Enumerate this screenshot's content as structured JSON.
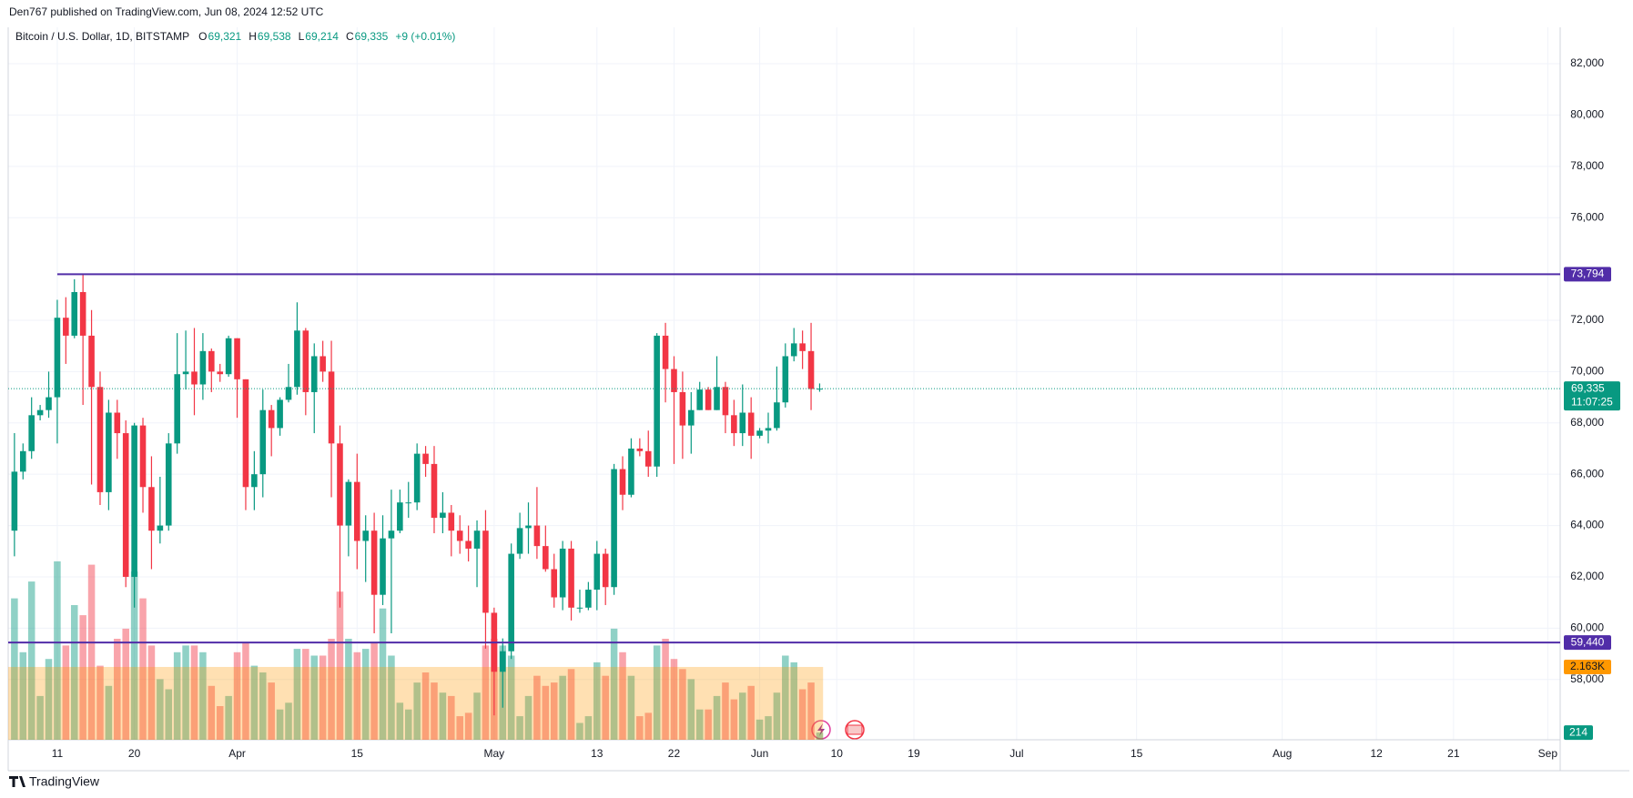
{
  "header": {
    "byline": "Den767 published on TradingView.com, Jun 08, 2024 12:52 UTC",
    "footer": "TradingView"
  },
  "chart_data": {
    "type": "candlestick",
    "title": "Bitcoin / U.S. Dollar, 1D, BITSTAMP",
    "legend": [
      {
        "label": "O",
        "value": 69321,
        "text": "69,321"
      },
      {
        "label": "H",
        "value": 69538,
        "text": "69,538"
      },
      {
        "label": "L",
        "value": 69214,
        "text": "69,214"
      },
      {
        "label": "C",
        "value": 69335,
        "text": "69,335"
      }
    ],
    "change": "+9 (+0.01%)",
    "up_color": "#089981",
    "down_color": "#f23645",
    "x": [
      0,
      1,
      2,
      3,
      4,
      5,
      6,
      7,
      8,
      9,
      10,
      11,
      12,
      13,
      14,
      15,
      16,
      17,
      18,
      19,
      20,
      21,
      22,
      23,
      24,
      25,
      26,
      27,
      28,
      29,
      30,
      31,
      32,
      33,
      34,
      35,
      36,
      37,
      38,
      39,
      40,
      41,
      42,
      43,
      44,
      45,
      46,
      47,
      48,
      49,
      50,
      51,
      52,
      53,
      54,
      55,
      56,
      57,
      58,
      59,
      60,
      61,
      62,
      63,
      64,
      65,
      66,
      67,
      68,
      69,
      70,
      71,
      72,
      73,
      74,
      75,
      76,
      77,
      78,
      79,
      80,
      81,
      82,
      83,
      84,
      85,
      86,
      87,
      88,
      89,
      90,
      91,
      92,
      93,
      94
    ],
    "open": [
      63800,
      66100,
      66900,
      68300,
      68500,
      69000,
      72100,
      71400,
      73100,
      71400,
      69400,
      65300,
      68400,
      67600,
      62000,
      67900,
      65500,
      63800,
      64000,
      67200,
      69900,
      70000,
      69500,
      70800,
      70000,
      69900,
      71300,
      69700,
      65500,
      66000,
      68500,
      67800,
      68900,
      69400,
      71600,
      69200,
      70600,
      70000,
      67200,
      64000,
      65700,
      63400,
      63800,
      61300,
      63500,
      63800,
      64900,
      64900,
      66800,
      66400,
      64300,
      64500,
      63800,
      63400,
      63100,
      63800,
      60600,
      58300,
      59100,
      62900,
      63900,
      64000,
      63200,
      62300,
      61200,
      63100,
      60800,
      60800,
      61500,
      62900,
      61600,
      66200,
      65200,
      67000,
      66900,
      66300,
      71400,
      70100,
      69200,
      67900,
      68500,
      69300,
      68500,
      69400,
      68300,
      67600,
      68400,
      67500,
      67700,
      67800,
      68800,
      70600,
      71100,
      70800,
      69321
    ],
    "high": [
      67600,
      67200,
      69000,
      68700,
      70000,
      72800,
      72900,
      73600,
      73794,
      72400,
      70000,
      68900,
      68900,
      68100,
      68000,
      68200,
      66700,
      65900,
      67600,
      71500,
      71600,
      71700,
      71500,
      70900,
      70300,
      71400,
      71300,
      69700,
      66900,
      69300,
      68700,
      69000,
      70300,
      72700,
      71700,
      71100,
      71200,
      71200,
      67900,
      65800,
      66800,
      64400,
      64500,
      64400,
      65400,
      65400,
      65700,
      67200,
      67100,
      67100,
      65300,
      64800,
      64400,
      64000,
      64200,
      64600,
      60800,
      59600,
      63300,
      64500,
      64900,
      65500,
      64000,
      62900,
      63400,
      63400,
      61500,
      61800,
      63400,
      63100,
      66400,
      66700,
      67400,
      67400,
      67700,
      71500,
      71900,
      70600,
      70000,
      69200,
      69600,
      69400,
      70600,
      69600,
      68900,
      69500,
      69000,
      67800,
      68400,
      70200,
      71100,
      71700,
      71600,
      71900,
      69538
    ],
    "low": [
      62800,
      65800,
      66600,
      68100,
      68200,
      67200,
      70300,
      71300,
      68700,
      65600,
      64800,
      64600,
      66600,
      61600,
      60800,
      64500,
      62300,
      63300,
      63800,
      66800,
      69300,
      68300,
      68900,
      69200,
      69600,
      69800,
      68200,
      64600,
      64600,
      65100,
      66700,
      67500,
      68800,
      69100,
      68300,
      67600,
      69600,
      65100,
      60800,
      62800,
      62300,
      61800,
      59800,
      60900,
      59800,
      63700,
      64300,
      64600,
      65900,
      63700,
      63700,
      62800,
      62900,
      62600,
      61600,
      59200,
      56600,
      56900,
      58800,
      62700,
      62900,
      62700,
      62200,
      60800,
      60700,
      60300,
      60600,
      60700,
      60700,
      60900,
      61300,
      64600,
      65100,
      66700,
      65900,
      65900,
      68800,
      66400,
      66600,
      66800,
      68500,
      68500,
      68500,
      67600,
      67100,
      67100,
      66600,
      67400,
      67200,
      67700,
      68600,
      70400,
      70100,
      68500,
      69214
    ],
    "close": [
      66100,
      66900,
      68300,
      68500,
      69000,
      72100,
      71400,
      73100,
      71400,
      69400,
      65300,
      68400,
      67600,
      62000,
      67900,
      65500,
      63800,
      64000,
      67200,
      69900,
      70000,
      69500,
      70800,
      70000,
      69900,
      71300,
      69700,
      65500,
      66000,
      68500,
      67800,
      68900,
      69400,
      71600,
      69200,
      70600,
      70000,
      67200,
      64000,
      65700,
      63400,
      63800,
      61300,
      63500,
      63800,
      64900,
      64900,
      66800,
      66400,
      64300,
      64500,
      63800,
      63400,
      63100,
      63800,
      60600,
      58300,
      59100,
      62900,
      63900,
      64000,
      63200,
      62300,
      61200,
      63100,
      60800,
      60800,
      61500,
      62900,
      61600,
      66200,
      65200,
      67000,
      66900,
      66300,
      71400,
      70100,
      69200,
      67900,
      68500,
      69300,
      68500,
      69400,
      68300,
      67600,
      68400,
      67500,
      67700,
      67800,
      68800,
      70600,
      71100,
      70800,
      69321,
      69335
    ],
    "volume": [
      4200,
      2600,
      4700,
      1300,
      2400,
      5300,
      2800,
      4000,
      3700,
      5200,
      2200,
      1600,
      3000,
      3300,
      5000,
      4200,
      2800,
      1800,
      1500,
      2600,
      2800,
      2800,
      2600,
      1600,
      1000,
      1300,
      2600,
      2900,
      2200,
      2000,
      1700,
      900,
      1100,
      2700,
      2700,
      2500,
      2500,
      3000,
      4400,
      3000,
      2600,
      2700,
      2900,
      3900,
      2500,
      1100,
      900,
      1700,
      2000,
      1700,
      1400,
      1300,
      700,
      800,
      1400,
      2800,
      3000,
      2800,
      2500,
      700,
      1300,
      1900,
      1600,
      1700,
      1900,
      2100,
      500,
      700,
      2300,
      1900,
      3300,
      2600,
      1900,
      700,
      800,
      2800,
      3000,
      2400,
      2100,
      1800,
      900,
      900,
      1300,
      1700,
      1200,
      1400,
      1600,
      600,
      700,
      1400,
      2500,
      2300,
      1500,
      1700,
      214
    ],
    "xlim": [
      -0.73,
      180.45
    ],
    "xticks": [
      {
        "value": 5,
        "label": "11"
      },
      {
        "value": 14,
        "label": "20"
      },
      {
        "value": 26,
        "label": "Apr"
      },
      {
        "value": 40,
        "label": "15"
      },
      {
        "value": 56,
        "label": "May"
      },
      {
        "value": 68,
        "label": "13"
      },
      {
        "value": 77,
        "label": "22"
      },
      {
        "value": 87,
        "label": "Jun"
      },
      {
        "value": 96,
        "label": "10"
      },
      {
        "value": 105,
        "label": "19"
      },
      {
        "value": 117,
        "label": "Jul"
      },
      {
        "value": 131,
        "label": "15"
      },
      {
        "value": 148,
        "label": "Aug"
      },
      {
        "value": 159,
        "label": "12"
      },
      {
        "value": 168,
        "label": "21"
      },
      {
        "value": 179,
        "label": "Sep"
      }
    ],
    "ylim": [
      55650,
      83420
    ],
    "yticks": [
      {
        "value": 58000,
        "label": "58,000"
      },
      {
        "value": 60000,
        "label": "60,000"
      },
      {
        "value": 62000,
        "label": "62,000"
      },
      {
        "value": 64000,
        "label": "64,000"
      },
      {
        "value": 66000,
        "label": "66,000"
      },
      {
        "value": 68000,
        "label": "68,000"
      },
      {
        "value": 70000,
        "label": "70,000"
      },
      {
        "value": 72000,
        "label": "72,000"
      },
      {
        "value": 76000,
        "label": "76,000"
      },
      {
        "value": 78000,
        "label": "78,000"
      },
      {
        "value": 80000,
        "label": "80,000"
      },
      {
        "value": 82000,
        "label": "82,000"
      }
    ],
    "vlim": [
      0,
      7000
    ],
    "grid": true,
    "levels": [
      {
        "value": 73794,
        "label": "73,794",
        "color": "#512da8"
      },
      {
        "value": 59440,
        "label": "59,440",
        "color": "#512da8"
      }
    ],
    "last_price": {
      "value": 69335,
      "label": "69,335",
      "countdown": "11:07:25"
    },
    "volume_ma": {
      "value": 2163,
      "label": "2.163K",
      "color": "#ff9800"
    },
    "last_volume": {
      "value": 214,
      "label": "214"
    }
  }
}
